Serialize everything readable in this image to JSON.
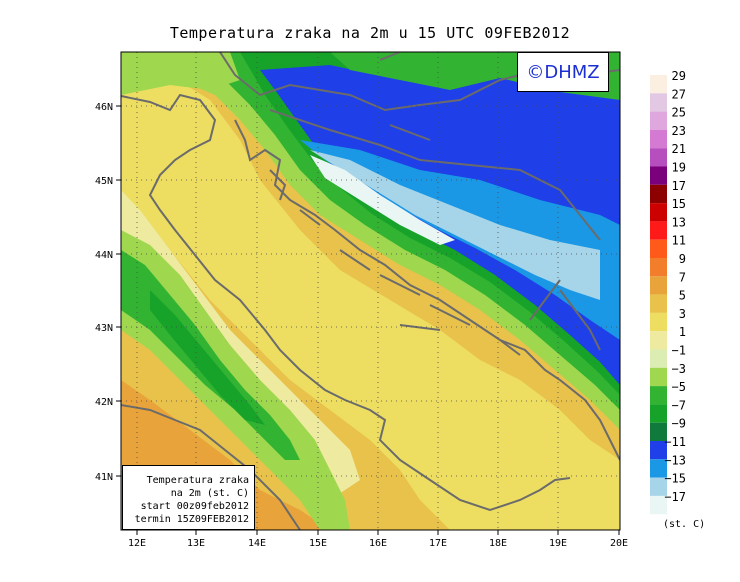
{
  "title": "Temperatura zraka na 2m u 15 UTC 09FEB2012",
  "copyright": "©DHMZ",
  "info_box": {
    "line1": "Temperatura zraka",
    "line2": "na 2m (st. C)",
    "line3": "start 00z09feb2012",
    "line4": "termin 15Z09FEB2012"
  },
  "legend": {
    "units": "(st. C)",
    "labels": [
      "29",
      "27",
      "25",
      "23",
      "21",
      "19",
      "17",
      "15",
      "13",
      "11",
      "9",
      "7",
      "5",
      "3",
      "1",
      "−1",
      "−3",
      "−5",
      "−7",
      "−9",
      "−11",
      "−13",
      "−15",
      "−17"
    ],
    "colors": [
      "#fbefe2",
      "#e2c8e2",
      "#dea7dd",
      "#d47ad2",
      "#b64ebd",
      "#7b007b",
      "#8c0000",
      "#cd0000",
      "#ff1a1a",
      "#ff5a1a",
      "#f27d2a",
      "#e9a33b",
      "#e8c24a",
      "#edde62",
      "#eeeba1",
      "#dbedb2",
      "#9fd74f",
      "#32b432",
      "#17a32a",
      "#0f7a3b",
      "#1f3fe8",
      "#1a98e6",
      "#a6d4e8",
      "#e9f6f4"
    ]
  },
  "axes": {
    "lon_labels": [
      "12E",
      "13E",
      "14E",
      "15E",
      "16E",
      "17E",
      "18E",
      "19E",
      "20E"
    ],
    "lat_labels": [
      "46N",
      "45N",
      "44N",
      "43N",
      "42N",
      "41N"
    ]
  },
  "map_colors": {
    "warm_orange": "#e9a33b",
    "yellow_orange": "#e8c24a",
    "yellow": "#edde62",
    "pale_yellow": "#eeeba1",
    "pale_green": "#dbedb2",
    "light_green": "#9fd74f",
    "green": "#32b432",
    "dark_green": "#17a32a",
    "deep_green": "#0f7a3b",
    "blue": "#1f3fe8",
    "sky_blue": "#1a98e6",
    "pale_blue": "#a6d4e8",
    "ice": "#e9f6f4",
    "coast": "#6b6b6b"
  }
}
